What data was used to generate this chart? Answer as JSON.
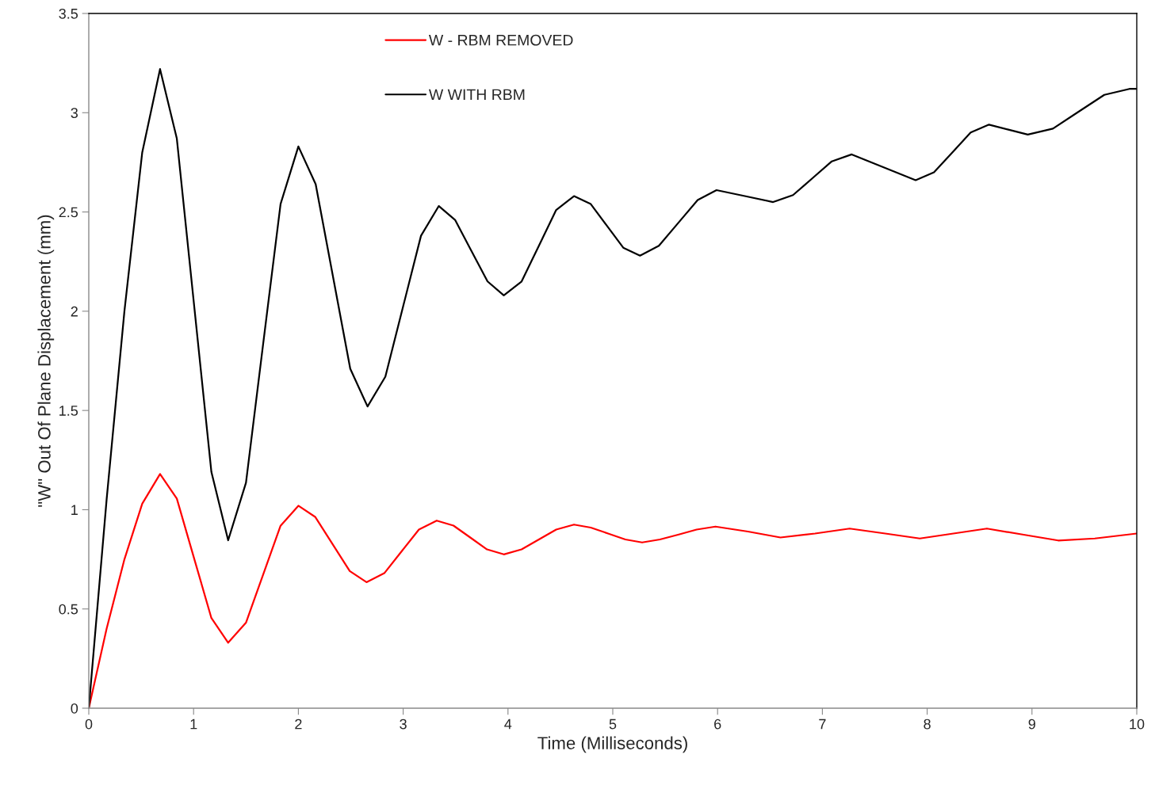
{
  "chart_data": {
    "type": "line",
    "xlabel": "Time (Milliseconds)",
    "ylabel": "\"W\" Out Of Plane Displacement (mm)",
    "xlim": [
      0,
      10
    ],
    "xticks": [
      0,
      1,
      2,
      3,
      4,
      5,
      6,
      7,
      8,
      9,
      10
    ],
    "ylim": [
      0,
      3.5
    ],
    "yticks": [
      0,
      0.5,
      1,
      1.5,
      2,
      2.5,
      3,
      3.5
    ],
    "grid": false,
    "legend": "top",
    "marker": "none",
    "line_style": "solid",
    "series": [
      {
        "name": "W - RBM REMOVED",
        "color": "#ff0000",
        "x": [
          0,
          0.17,
          0.34,
          0.51,
          0.68,
          0.84,
          1.005,
          1.17,
          1.33,
          1.5,
          1.665,
          1.83,
          2.0,
          2.16,
          2.325,
          2.49,
          2.65,
          2.82,
          2.985,
          3.15,
          3.32,
          3.48,
          3.64,
          3.8,
          3.96,
          4.13,
          4.295,
          4.46,
          4.63,
          4.79,
          4.955,
          5.12,
          5.28,
          5.45,
          5.63,
          5.8,
          5.98,
          6.29,
          6.6,
          6.93,
          7.26,
          7.6,
          7.93,
          8.25,
          8.57,
          8.91,
          9.25,
          9.6,
          10
        ],
        "values": [
          0,
          0.4,
          0.75,
          1.03,
          1.18,
          1.056,
          0.755,
          0.454,
          0.33,
          0.431,
          0.675,
          0.919,
          1.02,
          0.964,
          0.828,
          0.691,
          0.635,
          0.68,
          0.79,
          0.9,
          0.945,
          0.92,
          0.86,
          0.8,
          0.775,
          0.8,
          0.85,
          0.9,
          0.925,
          0.91,
          0.88,
          0.85,
          0.835,
          0.85,
          0.875,
          0.9,
          0.915,
          0.89,
          0.86,
          0.88,
          0.905,
          0.88,
          0.855,
          0.88,
          0.905,
          0.875,
          0.845,
          0.855,
          0.88
        ]
      },
      {
        "name": "W WITH RBM",
        "color": "#000000",
        "x": [
          0,
          0.17,
          0.34,
          0.51,
          0.68,
          0.84,
          1.005,
          1.17,
          1.33,
          1.5,
          1.665,
          1.83,
          2.0,
          2.165,
          2.33,
          2.495,
          2.66,
          2.83,
          3.0,
          3.17,
          3.34,
          3.495,
          3.65,
          3.805,
          3.96,
          4.13,
          4.295,
          4.46,
          4.63,
          4.79,
          4.945,
          5.1,
          5.26,
          5.44,
          5.625,
          5.81,
          5.99,
          6.26,
          6.53,
          6.72,
          6.905,
          7.09,
          7.28,
          7.585,
          7.89,
          8.065,
          8.24,
          8.415,
          8.59,
          8.775,
          8.96,
          9.2,
          9.445,
          9.69,
          9.93,
          10
        ],
        "values": [
          0,
          1.05,
          2.0,
          2.8,
          3.22,
          2.87,
          2.03,
          1.19,
          0.846,
          1.136,
          1.84,
          2.54,
          2.83,
          2.64,
          2.175,
          1.71,
          1.52,
          1.67,
          2.025,
          2.38,
          2.53,
          2.46,
          2.305,
          2.15,
          2.08,
          2.15,
          2.33,
          2.51,
          2.58,
          2.54,
          2.43,
          2.32,
          2.28,
          2.33,
          2.445,
          2.56,
          2.61,
          2.58,
          2.55,
          2.585,
          2.67,
          2.755,
          2.79,
          2.725,
          2.66,
          2.7,
          2.8,
          2.9,
          2.94,
          2.915,
          2.89,
          2.92,
          3.005,
          3.09,
          3.12,
          3.12
        ]
      }
    ]
  }
}
